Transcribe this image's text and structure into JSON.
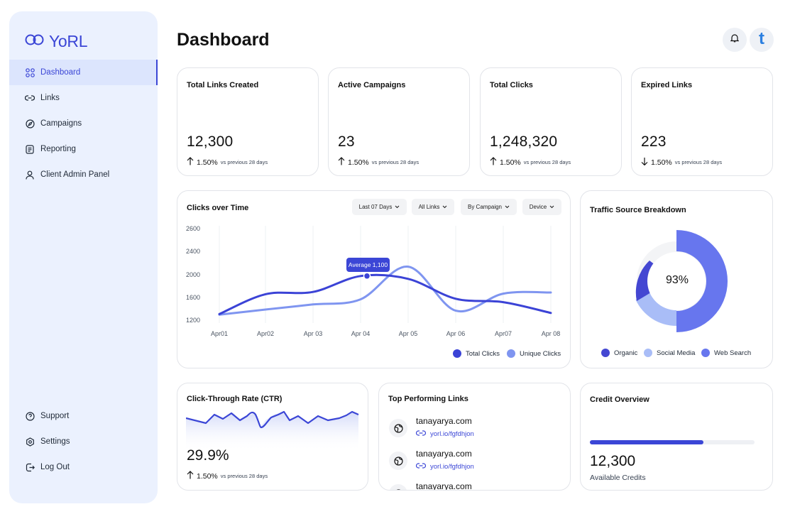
{
  "app": {
    "logo_text": "YoRL"
  },
  "sidebar": {
    "items": [
      {
        "label": "Dashboard",
        "icon": "grid-icon"
      },
      {
        "label": "Links",
        "icon": "link-icon"
      },
      {
        "label": "Campaigns",
        "icon": "compass-icon"
      },
      {
        "label": "Reporting",
        "icon": "report-icon"
      },
      {
        "label": "Client Admin Panel",
        "icon": "user-icon"
      }
    ],
    "bottom": [
      {
        "label": "Support",
        "icon": "help-icon"
      },
      {
        "label": "Settings",
        "icon": "gear-icon"
      },
      {
        "label": "Log Out",
        "icon": "logout-icon"
      }
    ]
  },
  "header": {
    "title": "Dashboard",
    "avatar_letter": "t"
  },
  "stats": [
    {
      "title": "Total Links Created",
      "value": "12,300",
      "change": "1.50%",
      "direction": "up",
      "suffix": "vs previous 28 days"
    },
    {
      "title": "Active Campaigns",
      "value": "23",
      "change": "1.50%",
      "direction": "up",
      "suffix": "vs previous 28 days"
    },
    {
      "title": "Total Clicks",
      "value": "1,248,320",
      "change": "1.50%",
      "direction": "up",
      "suffix": "vs previous 28 days"
    },
    {
      "title": "Expired Links",
      "value": "223",
      "change": "1.50%",
      "direction": "down",
      "suffix": "vs previous 28 days"
    }
  ],
  "clicks_chart": {
    "title": "Clicks over Time",
    "filters": [
      "Last 07 Days",
      "All Links",
      "By Campaign",
      "Device"
    ],
    "tooltip": "Average 1,100",
    "legend": [
      "Total Clicks",
      "Unique Clicks"
    ]
  },
  "chart_data": {
    "type": "line",
    "x": [
      "Apr01",
      "Apr02",
      "Apr 03",
      "Apr 04",
      "Apr 05",
      "Apr 06",
      "Apr07",
      "Apr 08"
    ],
    "y_ticks": [
      2600,
      2400,
      2000,
      1600,
      1200
    ],
    "series": [
      {
        "name": "Total Clicks",
        "color": "#3B43D6",
        "values": [
          1320,
          1670,
          1710,
          1990,
          1940,
          1590,
          1530,
          1340
        ]
      },
      {
        "name": "Unique Clicks",
        "color": "#7F95F0",
        "values": [
          1310,
          1400,
          1490,
          1580,
          2150,
          1380,
          1680,
          1700
        ]
      }
    ]
  },
  "traffic": {
    "title": "Traffic Source Breakdown",
    "center_label": "93%",
    "segments": [
      {
        "name": "Organic",
        "color": "#4447D2"
      },
      {
        "name": "Social Media",
        "color": "#A9BDF7"
      },
      {
        "name": "Web Search",
        "color": "#6776EE"
      }
    ]
  },
  "ctr": {
    "title": "Click-Through Rate (CTR)",
    "value": "29.9%",
    "change": "1.50%",
    "suffix": "vs previous 28 days"
  },
  "top_links": {
    "title": "Top Performing Links",
    "items": [
      {
        "domain": "tanayarya.com",
        "short": "yorl.io/fgfdhjon"
      },
      {
        "domain": "tanayarya.com",
        "short": "yorl.io/fgfdhjon"
      },
      {
        "domain": "tanayarya.com",
        "short": ""
      }
    ]
  },
  "credits": {
    "title": "Credit Overview",
    "value": "12,300",
    "label": "Available Credits",
    "used_fraction": 0.69
  }
}
